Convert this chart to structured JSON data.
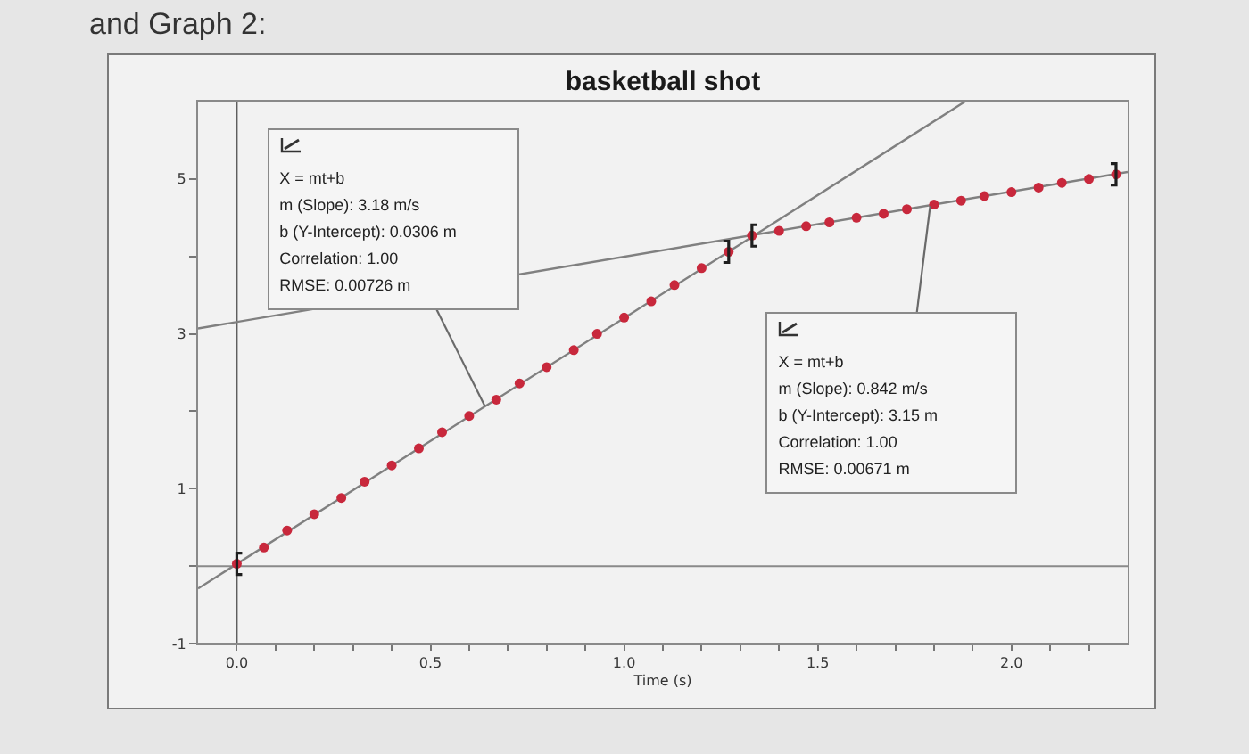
{
  "chart_data": {
    "type": "scatter",
    "title": "basketball shot",
    "xlabel": "Time (s)",
    "annotations": [
      "and Graph 2:",
      {
        "text": "X = mt+b\nm (Slope): 3.18 m/s\nb (Y-Intercept): 0.0306 m\nCorrelation: 1.00\nRMSE: 0.00726 m",
        "x": 0.64,
        "y": 2.07
      },
      {
        "text": "X = mt+b\nm (Slope): 0.842 m/s\nb (Y-Intercept): 3.15 m\nCorrelation: 1.00\nRMSE: 0.00671 m",
        "x": 1.79,
        "y": 4.65
      }
    ],
    "xlim": [
      -0.1,
      2.3
    ],
    "ylim": [
      -1,
      6
    ],
    "xticks": [
      {
        "value": 0,
        "label": "0.0"
      },
      {
        "value": 0.1,
        "label": null
      },
      {
        "value": 0.2,
        "label": null
      },
      {
        "value": 0.3,
        "label": null
      },
      {
        "value": 0.4,
        "label": null
      },
      0.5,
      {
        "value": 0.6,
        "label": null
      },
      {
        "value": 0.7,
        "label": null
      },
      {
        "value": 0.8,
        "label": null
      },
      {
        "value": 0.9,
        "label": null
      },
      {
        "value": 1,
        "label": "1.0"
      },
      {
        "value": 1.1,
        "label": null
      },
      {
        "value": 1.2,
        "label": null
      },
      {
        "value": 1.3,
        "label": null
      },
      {
        "value": 1.4,
        "label": null
      },
      1.5,
      {
        "value": 1.6,
        "label": null
      },
      {
        "value": 1.7,
        "label": null
      },
      {
        "value": 1.8,
        "label": null
      },
      {
        "value": 1.9,
        "label": null
      },
      {
        "value": 2,
        "label": "2.0"
      },
      {
        "value": 2.1,
        "label": null
      },
      {
        "value": 2.2,
        "label": null
      }
    ],
    "yticks": [
      -1,
      {
        "value": 0,
        "label": null
      },
      1,
      {
        "value": 2,
        "label": null
      },
      3,
      {
        "value": 4,
        "label": null
      },
      5
    ],
    "ref_lines": [
      {
        "axis": "x",
        "value": 0,
        "color": "#5e5e5e"
      },
      {
        "axis": "y",
        "value": 0,
        "color": "#8a8a8a"
      }
    ],
    "series": [
      {
        "type": "line",
        "color": "#808080",
        "line_style": "solid",
        "x": [
          -0.1,
          1.88
        ],
        "values": [
          -0.29,
          6.0
        ]
      },
      {
        "type": "line",
        "color": "#808080",
        "line_style": "solid",
        "x": [
          -0.1,
          2.3
        ],
        "values": [
          3.07,
          5.09
        ]
      },
      {
        "color": "#c8283c",
        "marker": "circle",
        "x": [
          0,
          0.07,
          0.13,
          0.2,
          0.27,
          0.33,
          0.4,
          0.47,
          0.53,
          0.6,
          0.67,
          0.73,
          0.8,
          0.87,
          0.93,
          1.0,
          1.07,
          1.13,
          1.2,
          1.27,
          1.33,
          1.4,
          1.47,
          1.53,
          1.6,
          1.67,
          1.73,
          1.8,
          1.87,
          1.93,
          2.0,
          2.07,
          2.13,
          2.2,
          2.27
        ],
        "values": [
          0.03,
          0.24,
          0.46,
          0.67,
          0.88,
          1.09,
          1.3,
          1.52,
          1.73,
          1.94,
          2.15,
          2.36,
          2.57,
          2.79,
          3.0,
          3.21,
          3.42,
          3.63,
          3.85,
          4.06,
          4.27,
          4.33,
          4.39,
          4.44,
          4.5,
          4.55,
          4.61,
          4.67,
          4.72,
          4.78,
          4.83,
          4.89,
          4.95,
          5.0,
          5.06
        ]
      }
    ]
  }
}
